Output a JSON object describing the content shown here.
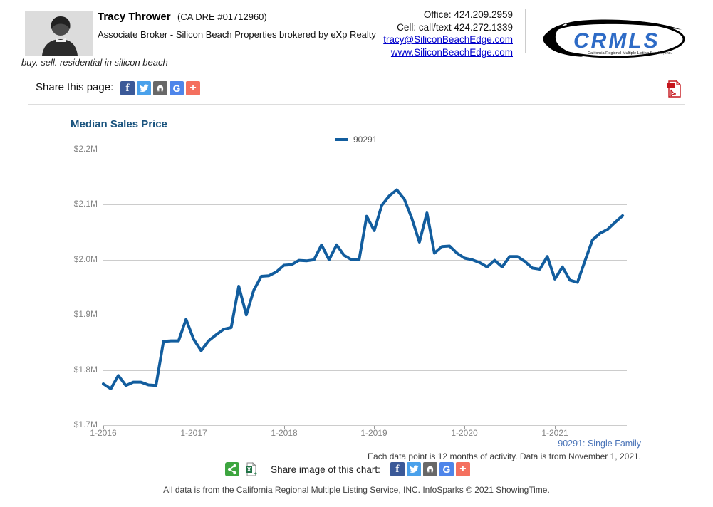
{
  "header": {
    "name": "Tracy Thrower",
    "license": "(CA DRE #01712960)",
    "role_line": "Associate Broker - Silicon Beach Properties brokered by eXp Realty",
    "tagline": "buy. sell. residential in silicon beach",
    "office": "Office: 424.209.2959",
    "cell": "Cell: call/text 424.272.1339",
    "email": "tracy@SiliconBeachEdge.com",
    "website": "www.SiliconBeachEdge.com",
    "logo_text": "CRMLS",
    "logo_caption": "California Regional Multiple Listing Service, Inc."
  },
  "share_page": {
    "label": "Share this page:",
    "icons": [
      "facebook",
      "twitter",
      "print",
      "google",
      "share-more"
    ],
    "google_glyph": "G",
    "facebook_glyph": "f",
    "plus_glyph": "+"
  },
  "chart": {
    "title": "Median Sales Price",
    "legend_label": "90291"
  },
  "chart_data": {
    "type": "line",
    "title": "Median Sales Price",
    "series_name": "90291",
    "unit": "USD millions",
    "ylim": [
      1.7,
      2.2
    ],
    "grid": "horizontal",
    "legend_position": "top-center",
    "y_tick_labels": [
      "$2.2M",
      "$2.1M",
      "$2.0M",
      "$1.9M",
      "$1.8M",
      "$1.7M"
    ],
    "x_labels": [
      "1-2016",
      "1-2017",
      "1-2018",
      "1-2019",
      "1-2020",
      "1-2021"
    ],
    "months": [
      "2016-01",
      "2016-02",
      "2016-03",
      "2016-04",
      "2016-05",
      "2016-06",
      "2016-07",
      "2016-08",
      "2016-09",
      "2016-10",
      "2016-11",
      "2016-12",
      "2017-01",
      "2017-02",
      "2017-03",
      "2017-04",
      "2017-05",
      "2017-06",
      "2017-07",
      "2017-08",
      "2017-09",
      "2017-10",
      "2017-11",
      "2017-12",
      "2018-01",
      "2018-02",
      "2018-03",
      "2018-04",
      "2018-05",
      "2018-06",
      "2018-07",
      "2018-08",
      "2018-09",
      "2018-10",
      "2018-11",
      "2018-12",
      "2019-01",
      "2019-02",
      "2019-03",
      "2019-04",
      "2019-05",
      "2019-06",
      "2019-07",
      "2019-08",
      "2019-09",
      "2019-10",
      "2019-11",
      "2019-12",
      "2020-01",
      "2020-02",
      "2020-03",
      "2020-04",
      "2020-05",
      "2020-06",
      "2020-07",
      "2020-08",
      "2020-09",
      "2020-10",
      "2020-11",
      "2020-12",
      "2021-01",
      "2021-02",
      "2021-03",
      "2021-04",
      "2021-05",
      "2021-06",
      "2021-07",
      "2021-08",
      "2021-09",
      "2021-10"
    ],
    "values": [
      1.775,
      1.766,
      1.79,
      1.772,
      1.778,
      1.778,
      1.773,
      1.772,
      1.852,
      1.853,
      1.853,
      1.892,
      1.856,
      1.835,
      1.853,
      1.864,
      1.874,
      1.877,
      1.952,
      1.9,
      1.945,
      1.97,
      1.971,
      1.978,
      1.99,
      1.991,
      1.999,
      1.998,
      2.0,
      2.027,
      2.0,
      2.027,
      2.008,
      2.0,
      2.001,
      2.079,
      2.053,
      2.099,
      2.116,
      2.127,
      2.11,
      2.075,
      2.032,
      2.085,
      2.012,
      2.024,
      2.025,
      2.012,
      2.003,
      2.0,
      1.995,
      1.987,
      1.999,
      1.987,
      2.006,
      2.006,
      1.997,
      1.985,
      1.983,
      2.006,
      1.965,
      1.987,
      1.963,
      1.959,
      1.998,
      2.036,
      2.048,
      2.055,
      2.068,
      2.08
    ]
  },
  "notes": {
    "series_note": "90291: Single Family",
    "data_note": "Each data point is 12 months of activity. Data is from November 1, 2021.",
    "share_chart_label": "Share image of this chart:"
  },
  "footer": {
    "text": "All data is from the California Regional Multiple Listing Service, INC. InfoSparks © 2021 ShowingTime."
  },
  "colors": {
    "line": "#125d9e",
    "title": "#19537e",
    "note_blue": "#4a74b8",
    "facebook": "#3b5998",
    "twitter": "#4aa1eb",
    "print": "#686868",
    "google": "#4e85ea",
    "share_more": "#f4705f",
    "share_green": "#3da53f",
    "excel_green": "#217346",
    "pdf_red": "#c5161d"
  }
}
